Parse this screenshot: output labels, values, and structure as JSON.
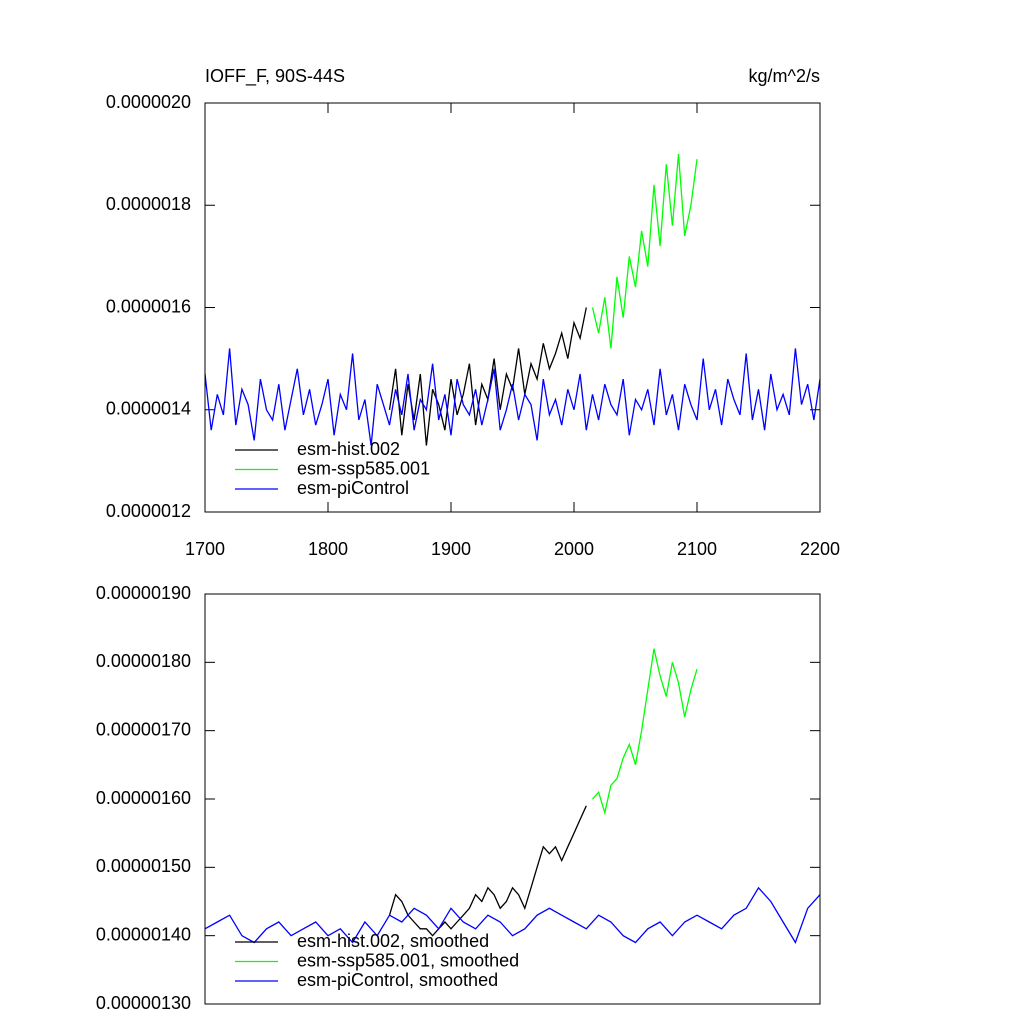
{
  "chart_data": [
    {
      "type": "line",
      "title": "IOFF_F, 90S-44S",
      "right_title": "kg/m^2/s",
      "xlim": [
        1700,
        2200
      ],
      "xticks": [
        1700,
        1800,
        1900,
        2000,
        2100,
        2200
      ],
      "ylim": [
        1.2e-06,
        2e-06
      ],
      "yticks": [
        {
          "value": 1.2e-06,
          "label": "0.0000012"
        },
        {
          "value": 1.4e-06,
          "label": "0.0000014"
        },
        {
          "value": 1.6e-06,
          "label": "0.0000016"
        },
        {
          "value": 1.8e-06,
          "label": "0.0000018"
        },
        {
          "value": 2e-06,
          "label": "0.0000020"
        }
      ],
      "legend": "lower left",
      "series": [
        {
          "name": "esm-hist.002",
          "color": "#000000",
          "x": [
            1850,
            1855,
            1860,
            1865,
            1870,
            1875,
            1880,
            1885,
            1890,
            1895,
            1900,
            1905,
            1910,
            1915,
            1920,
            1925,
            1930,
            1935,
            1940,
            1945,
            1950,
            1955,
            1960,
            1965,
            1970,
            1975,
            1980,
            1985,
            1990,
            1995,
            2000,
            2005,
            2010
          ],
          "values": [
            1.4e-06,
            1.48e-06,
            1.35e-06,
            1.45e-06,
            1.38e-06,
            1.47e-06,
            1.33e-06,
            1.44e-06,
            1.41e-06,
            1.36e-06,
            1.46e-06,
            1.39e-06,
            1.43e-06,
            1.49e-06,
            1.37e-06,
            1.45e-06,
            1.42e-06,
            1.5e-06,
            1.4e-06,
            1.47e-06,
            1.44e-06,
            1.52e-06,
            1.43e-06,
            1.49e-06,
            1.46e-06,
            1.53e-06,
            1.48e-06,
            1.51e-06,
            1.55e-06,
            1.5e-06,
            1.57e-06,
            1.54e-06,
            1.6e-06
          ]
        },
        {
          "name": "esm-ssp585.001",
          "color": "#00ff00",
          "x": [
            2015,
            2020,
            2025,
            2030,
            2035,
            2040,
            2045,
            2050,
            2055,
            2060,
            2065,
            2070,
            2075,
            2080,
            2085,
            2090,
            2095,
            2100
          ],
          "values": [
            1.6e-06,
            1.55e-06,
            1.62e-06,
            1.52e-06,
            1.66e-06,
            1.58e-06,
            1.7e-06,
            1.64e-06,
            1.75e-06,
            1.68e-06,
            1.84e-06,
            1.72e-06,
            1.88e-06,
            1.76e-06,
            1.9e-06,
            1.74e-06,
            1.8e-06,
            1.89e-06
          ]
        },
        {
          "name": "esm-piControl",
          "color": "#0000ff",
          "x": [
            1700,
            1705,
            1710,
            1715,
            1720,
            1725,
            1730,
            1735,
            1740,
            1745,
            1750,
            1755,
            1760,
            1765,
            1770,
            1775,
            1780,
            1785,
            1790,
            1795,
            1800,
            1805,
            1810,
            1815,
            1820,
            1825,
            1830,
            1835,
            1840,
            1845,
            1850,
            1855,
            1860,
            1865,
            1870,
            1875,
            1880,
            1885,
            1890,
            1895,
            1900,
            1905,
            1910,
            1915,
            1920,
            1925,
            1930,
            1935,
            1940,
            1945,
            1950,
            1955,
            1960,
            1965,
            1970,
            1975,
            1980,
            1985,
            1990,
            1995,
            2000,
            2005,
            2010,
            2015,
            2020,
            2025,
            2030,
            2035,
            2040,
            2045,
            2050,
            2055,
            2060,
            2065,
            2070,
            2075,
            2080,
            2085,
            2090,
            2095,
            2100,
            2105,
            2110,
            2115,
            2120,
            2125,
            2130,
            2135,
            2140,
            2145,
            2150,
            2155,
            2160,
            2165,
            2170,
            2175,
            2180,
            2185,
            2190,
            2195,
            2200
          ],
          "values": [
            1.47e-06,
            1.36e-06,
            1.43e-06,
            1.39e-06,
            1.52e-06,
            1.37e-06,
            1.44e-06,
            1.41e-06,
            1.34e-06,
            1.46e-06,
            1.4e-06,
            1.38e-06,
            1.45e-06,
            1.36e-06,
            1.42e-06,
            1.48e-06,
            1.39e-06,
            1.44e-06,
            1.37e-06,
            1.41e-06,
            1.46e-06,
            1.35e-06,
            1.43e-06,
            1.4e-06,
            1.51e-06,
            1.38e-06,
            1.42e-06,
            1.33e-06,
            1.45e-06,
            1.41e-06,
            1.37e-06,
            1.44e-06,
            1.39e-06,
            1.47e-06,
            1.36e-06,
            1.42e-06,
            1.4e-06,
            1.49e-06,
            1.38e-06,
            1.43e-06,
            1.35e-06,
            1.46e-06,
            1.41e-06,
            1.39e-06,
            1.44e-06,
            1.37e-06,
            1.42e-06,
            1.48e-06,
            1.36e-06,
            1.4e-06,
            1.45e-06,
            1.38e-06,
            1.43e-06,
            1.41e-06,
            1.34e-06,
            1.46e-06,
            1.39e-06,
            1.42e-06,
            1.37e-06,
            1.44e-06,
            1.4e-06,
            1.47e-06,
            1.36e-06,
            1.43e-06,
            1.38e-06,
            1.45e-06,
            1.41e-06,
            1.39e-06,
            1.46e-06,
            1.35e-06,
            1.42e-06,
            1.4e-06,
            1.44e-06,
            1.37e-06,
            1.48e-06,
            1.39e-06,
            1.43e-06,
            1.36e-06,
            1.45e-06,
            1.41e-06,
            1.38e-06,
            1.5e-06,
            1.4e-06,
            1.44e-06,
            1.37e-06,
            1.46e-06,
            1.42e-06,
            1.39e-06,
            1.51e-06,
            1.38e-06,
            1.44e-06,
            1.36e-06,
            1.47e-06,
            1.4e-06,
            1.43e-06,
            1.39e-06,
            1.52e-06,
            1.41e-06,
            1.45e-06,
            1.38e-06,
            1.46e-06
          ]
        }
      ]
    },
    {
      "type": "line",
      "xlim": [
        1700,
        2200
      ],
      "ylim": [
        1.3e-06,
        1.9e-06
      ],
      "yticks": [
        {
          "value": 1.3e-06,
          "label": "0.00000130"
        },
        {
          "value": 1.4e-06,
          "label": "0.00000140"
        },
        {
          "value": 1.5e-06,
          "label": "0.00000150"
        },
        {
          "value": 1.6e-06,
          "label": "0.00000160"
        },
        {
          "value": 1.7e-06,
          "label": "0.00000170"
        },
        {
          "value": 1.8e-06,
          "label": "0.00000180"
        },
        {
          "value": 1.9e-06,
          "label": "0.00000190"
        }
      ],
      "legend": "lower left",
      "series": [
        {
          "name": "esm-hist.002, smoothed",
          "color": "#000000",
          "x": [
            1850,
            1855,
            1860,
            1865,
            1870,
            1875,
            1880,
            1885,
            1890,
            1895,
            1900,
            1905,
            1910,
            1915,
            1920,
            1925,
            1930,
            1935,
            1940,
            1945,
            1950,
            1955,
            1960,
            1965,
            1970,
            1975,
            1980,
            1985,
            1990,
            1995,
            2000,
            2005,
            2010
          ],
          "values": [
            1.43e-06,
            1.46e-06,
            1.45e-06,
            1.43e-06,
            1.42e-06,
            1.41e-06,
            1.41e-06,
            1.4e-06,
            1.41e-06,
            1.42e-06,
            1.41e-06,
            1.42e-06,
            1.43e-06,
            1.44e-06,
            1.46e-06,
            1.45e-06,
            1.47e-06,
            1.46e-06,
            1.44e-06,
            1.45e-06,
            1.47e-06,
            1.46e-06,
            1.44e-06,
            1.47e-06,
            1.5e-06,
            1.53e-06,
            1.52e-06,
            1.53e-06,
            1.51e-06,
            1.53e-06,
            1.55e-06,
            1.57e-06,
            1.59e-06
          ]
        },
        {
          "name": "esm-ssp585.001, smoothed",
          "color": "#00ff00",
          "x": [
            2015,
            2020,
            2025,
            2030,
            2035,
            2040,
            2045,
            2050,
            2055,
            2060,
            2065,
            2070,
            2075,
            2080,
            2085,
            2090,
            2095,
            2100
          ],
          "values": [
            1.6e-06,
            1.61e-06,
            1.58e-06,
            1.62e-06,
            1.63e-06,
            1.66e-06,
            1.68e-06,
            1.65e-06,
            1.7e-06,
            1.76e-06,
            1.82e-06,
            1.78e-06,
            1.75e-06,
            1.8e-06,
            1.77e-06,
            1.72e-06,
            1.76e-06,
            1.79e-06
          ]
        },
        {
          "name": "esm-piControl, smoothed",
          "color": "#0000ff",
          "x": [
            1700,
            1710,
            1720,
            1730,
            1740,
            1750,
            1760,
            1770,
            1780,
            1790,
            1800,
            1810,
            1820,
            1830,
            1840,
            1850,
            1860,
            1870,
            1880,
            1890,
            1900,
            1910,
            1920,
            1930,
            1940,
            1950,
            1960,
            1970,
            1980,
            1990,
            2000,
            2010,
            2020,
            2030,
            2040,
            2050,
            2060,
            2070,
            2080,
            2090,
            2100,
            2110,
            2120,
            2130,
            2140,
            2150,
            2160,
            2170,
            2180,
            2190,
            2200
          ],
          "values": [
            1.41e-06,
            1.42e-06,
            1.43e-06,
            1.4e-06,
            1.39e-06,
            1.41e-06,
            1.42e-06,
            1.4e-06,
            1.41e-06,
            1.42e-06,
            1.4e-06,
            1.41e-06,
            1.39e-06,
            1.42e-06,
            1.4e-06,
            1.43e-06,
            1.42e-06,
            1.44e-06,
            1.43e-06,
            1.41e-06,
            1.44e-06,
            1.42e-06,
            1.41e-06,
            1.43e-06,
            1.42e-06,
            1.4e-06,
            1.41e-06,
            1.43e-06,
            1.44e-06,
            1.43e-06,
            1.42e-06,
            1.41e-06,
            1.43e-06,
            1.42e-06,
            1.4e-06,
            1.39e-06,
            1.41e-06,
            1.42e-06,
            1.4e-06,
            1.42e-06,
            1.43e-06,
            1.42e-06,
            1.41e-06,
            1.43e-06,
            1.44e-06,
            1.47e-06,
            1.45e-06,
            1.42e-06,
            1.39e-06,
            1.44e-06,
            1.46e-06
          ]
        }
      ]
    }
  ]
}
